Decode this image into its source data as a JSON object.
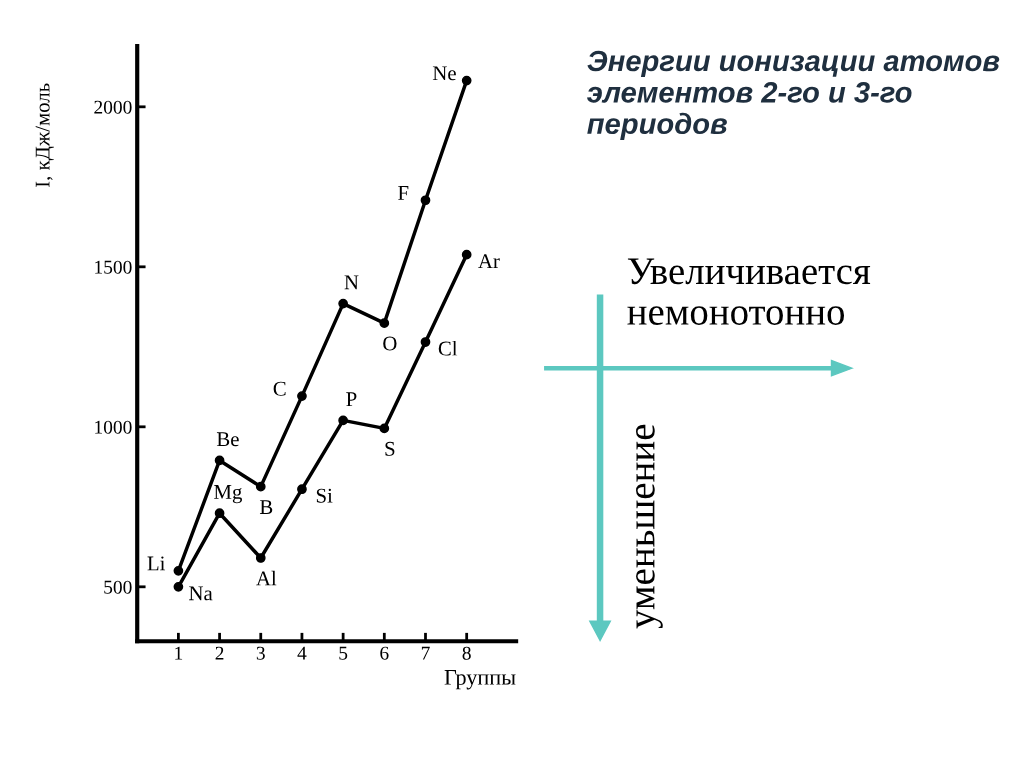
{
  "chart_data": {
    "type": "line",
    "title": "Энергии ионизации атомов элементов 2-го и 3-го периодов",
    "xlabel": "Группы",
    "ylabel": "I, кДж/моль",
    "x": [
      1,
      2,
      3,
      4,
      5,
      6,
      7,
      8
    ],
    "series": [
      {
        "color": "#000000",
        "values": [
          550,
          895,
          813,
          1096,
          1385,
          1324,
          1708,
          2082
        ]
      },
      {
        "color": "#000000",
        "values": [
          500,
          730,
          590,
          805,
          1020,
          995,
          1265,
          1538
        ]
      }
    ],
    "xlim": [
      0,
      9.2
    ],
    "ylim": [
      330,
      2190
    ],
    "xticks": [
      1,
      2,
      3,
      4,
      5,
      6,
      7,
      8
    ],
    "yticks": [
      500,
      1000,
      1500,
      2000
    ],
    "marker": "circle",
    "line_style": "solid",
    "grid": false,
    "annotations": [
      {
        "text": "Li",
        "x": 1,
        "y": 550
      },
      {
        "text": "Be",
        "x": 2,
        "y": 895
      },
      {
        "text": "B",
        "x": 3,
        "y": 813
      },
      {
        "text": "C",
        "x": 4,
        "y": 1096
      },
      {
        "text": "N",
        "x": 5,
        "y": 1385
      },
      {
        "text": "O",
        "x": 6,
        "y": 1324
      },
      {
        "text": "F",
        "x": 7,
        "y": 1708
      },
      {
        "text": "Ne",
        "x": 8,
        "y": 2082
      },
      {
        "text": "Na",
        "x": 1,
        "y": 500
      },
      {
        "text": "Mg",
        "x": 2,
        "y": 730
      },
      {
        "text": "Al",
        "x": 3,
        "y": 590
      },
      {
        "text": "Si",
        "x": 4,
        "y": 805
      },
      {
        "text": "P",
        "x": 5,
        "y": 1020
      },
      {
        "text": "S",
        "x": 6,
        "y": 995
      },
      {
        "text": "Cl",
        "x": 7,
        "y": 1265
      },
      {
        "text": "Ar",
        "x": 8,
        "y": 1538
      },
      "Увеличивается немонотонно",
      "уменьшение"
    ]
  }
}
